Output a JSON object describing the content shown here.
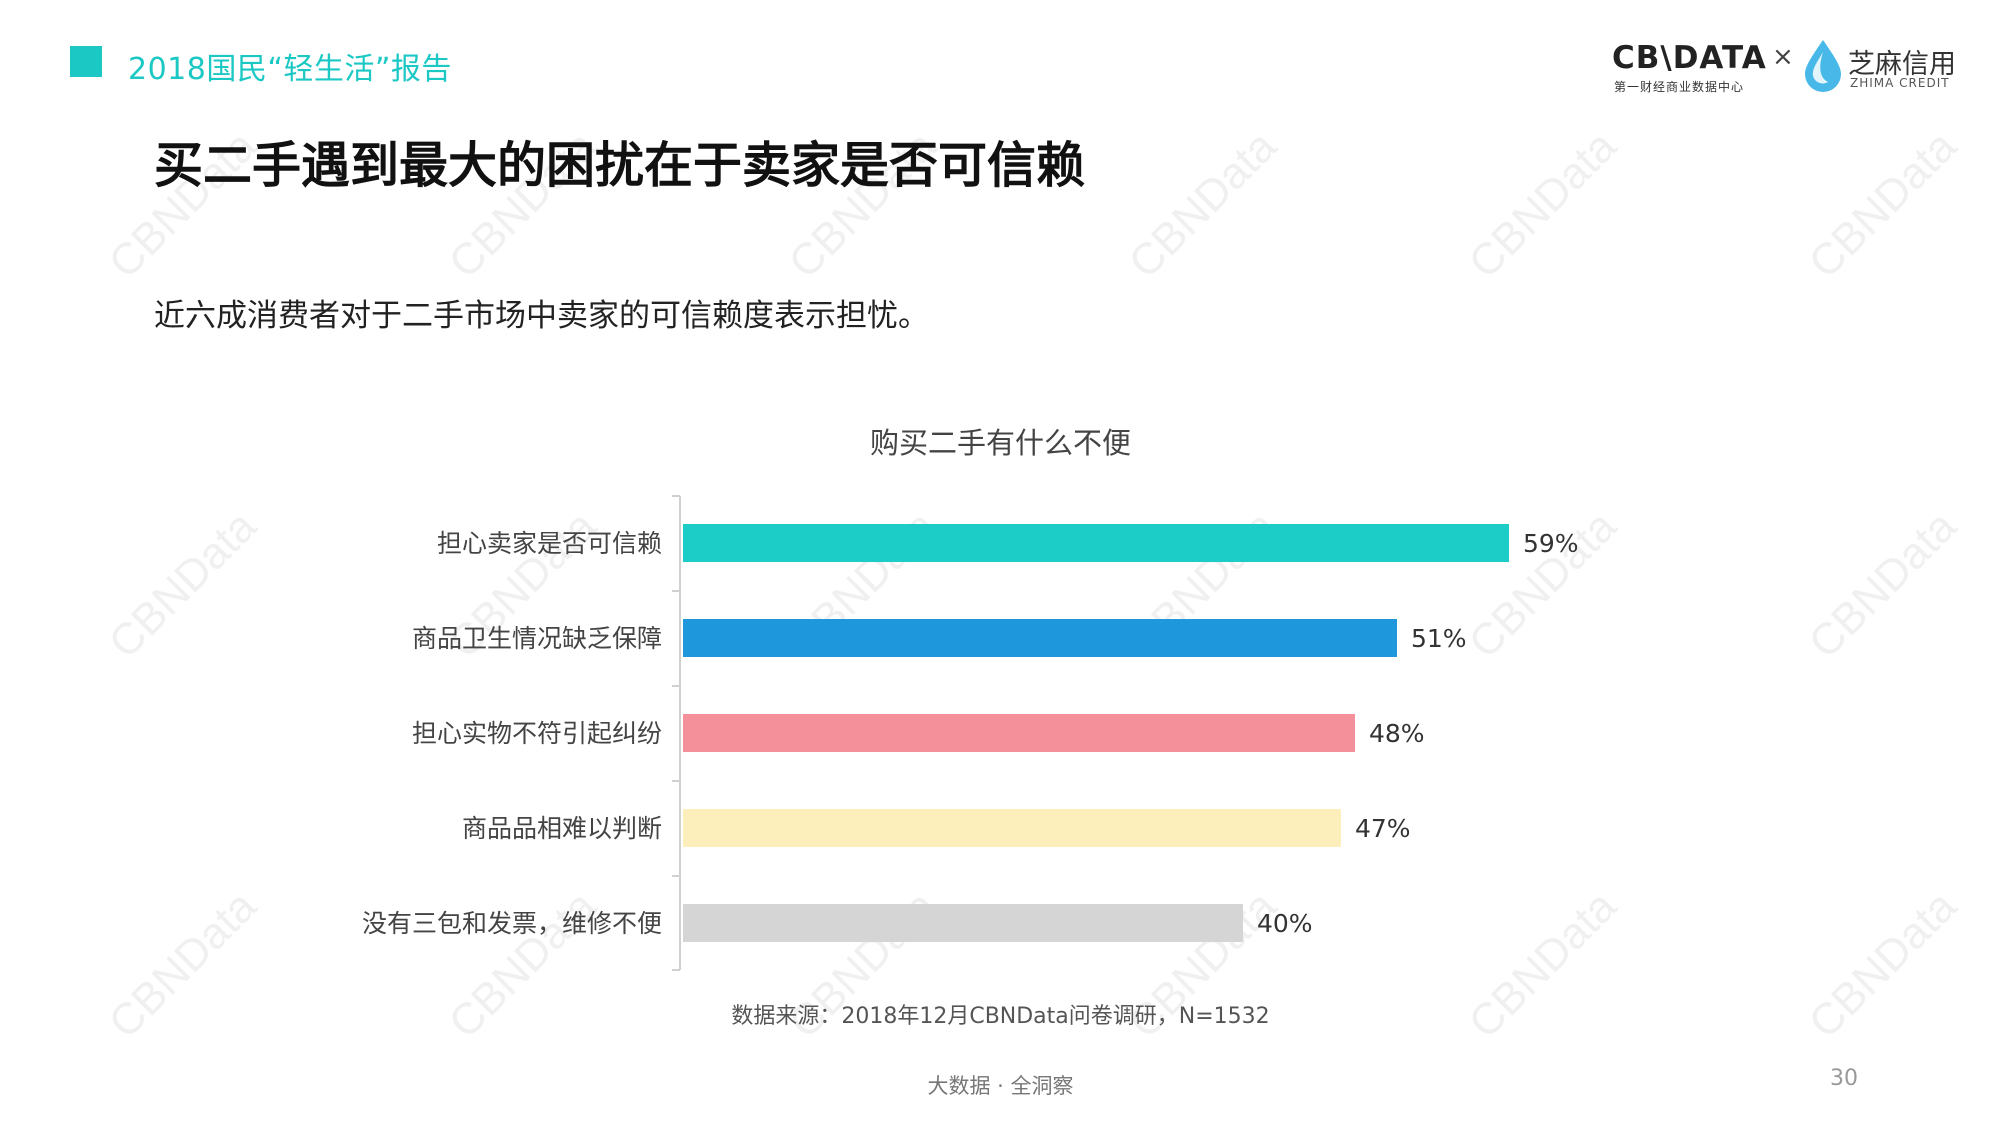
{
  "header": {
    "title": "2018国民“轻生活”报告"
  },
  "logo": {
    "cbndata": "CB\\DATA",
    "cbndata_sub": "第一财经商业数据中心",
    "times": "×",
    "zhima": "芝麻信用",
    "zhima_sub": "ZHIMA CREDIT"
  },
  "page_title": "买二手遇到最大的困扰在于卖家是否可信赖",
  "subtitle": "近六成消费者对于二手市场中卖家的可信赖度表示担忧。",
  "watermark": "CBNData",
  "colors": {
    "accent": "#1cc8c4",
    "bars": [
      "#1cccc6",
      "#1f97dc",
      "#f3909a",
      "#fdefbc",
      "#d5d5d5"
    ]
  },
  "chart_data": {
    "type": "bar",
    "orientation": "horizontal",
    "title": "购买二手有什么不便",
    "categories": [
      "担心卖家是否可信赖",
      "商品卫生情况缺乏保障",
      "担心实物不符引起纠纷",
      "商品品相难以判断",
      "没有三包和发票，维修不便"
    ],
    "values": [
      59,
      51,
      48,
      47,
      40
    ],
    "value_labels": [
      "59%",
      "51%",
      "48%",
      "47%",
      "40%"
    ],
    "unit": "%",
    "xlim": [
      0,
      65
    ],
    "grid": false,
    "legend": "none"
  },
  "source": "数据来源：2018年12月CBNData问卷调研，N=1532",
  "footer": "大数据 · 全洞察",
  "page_number": "30"
}
